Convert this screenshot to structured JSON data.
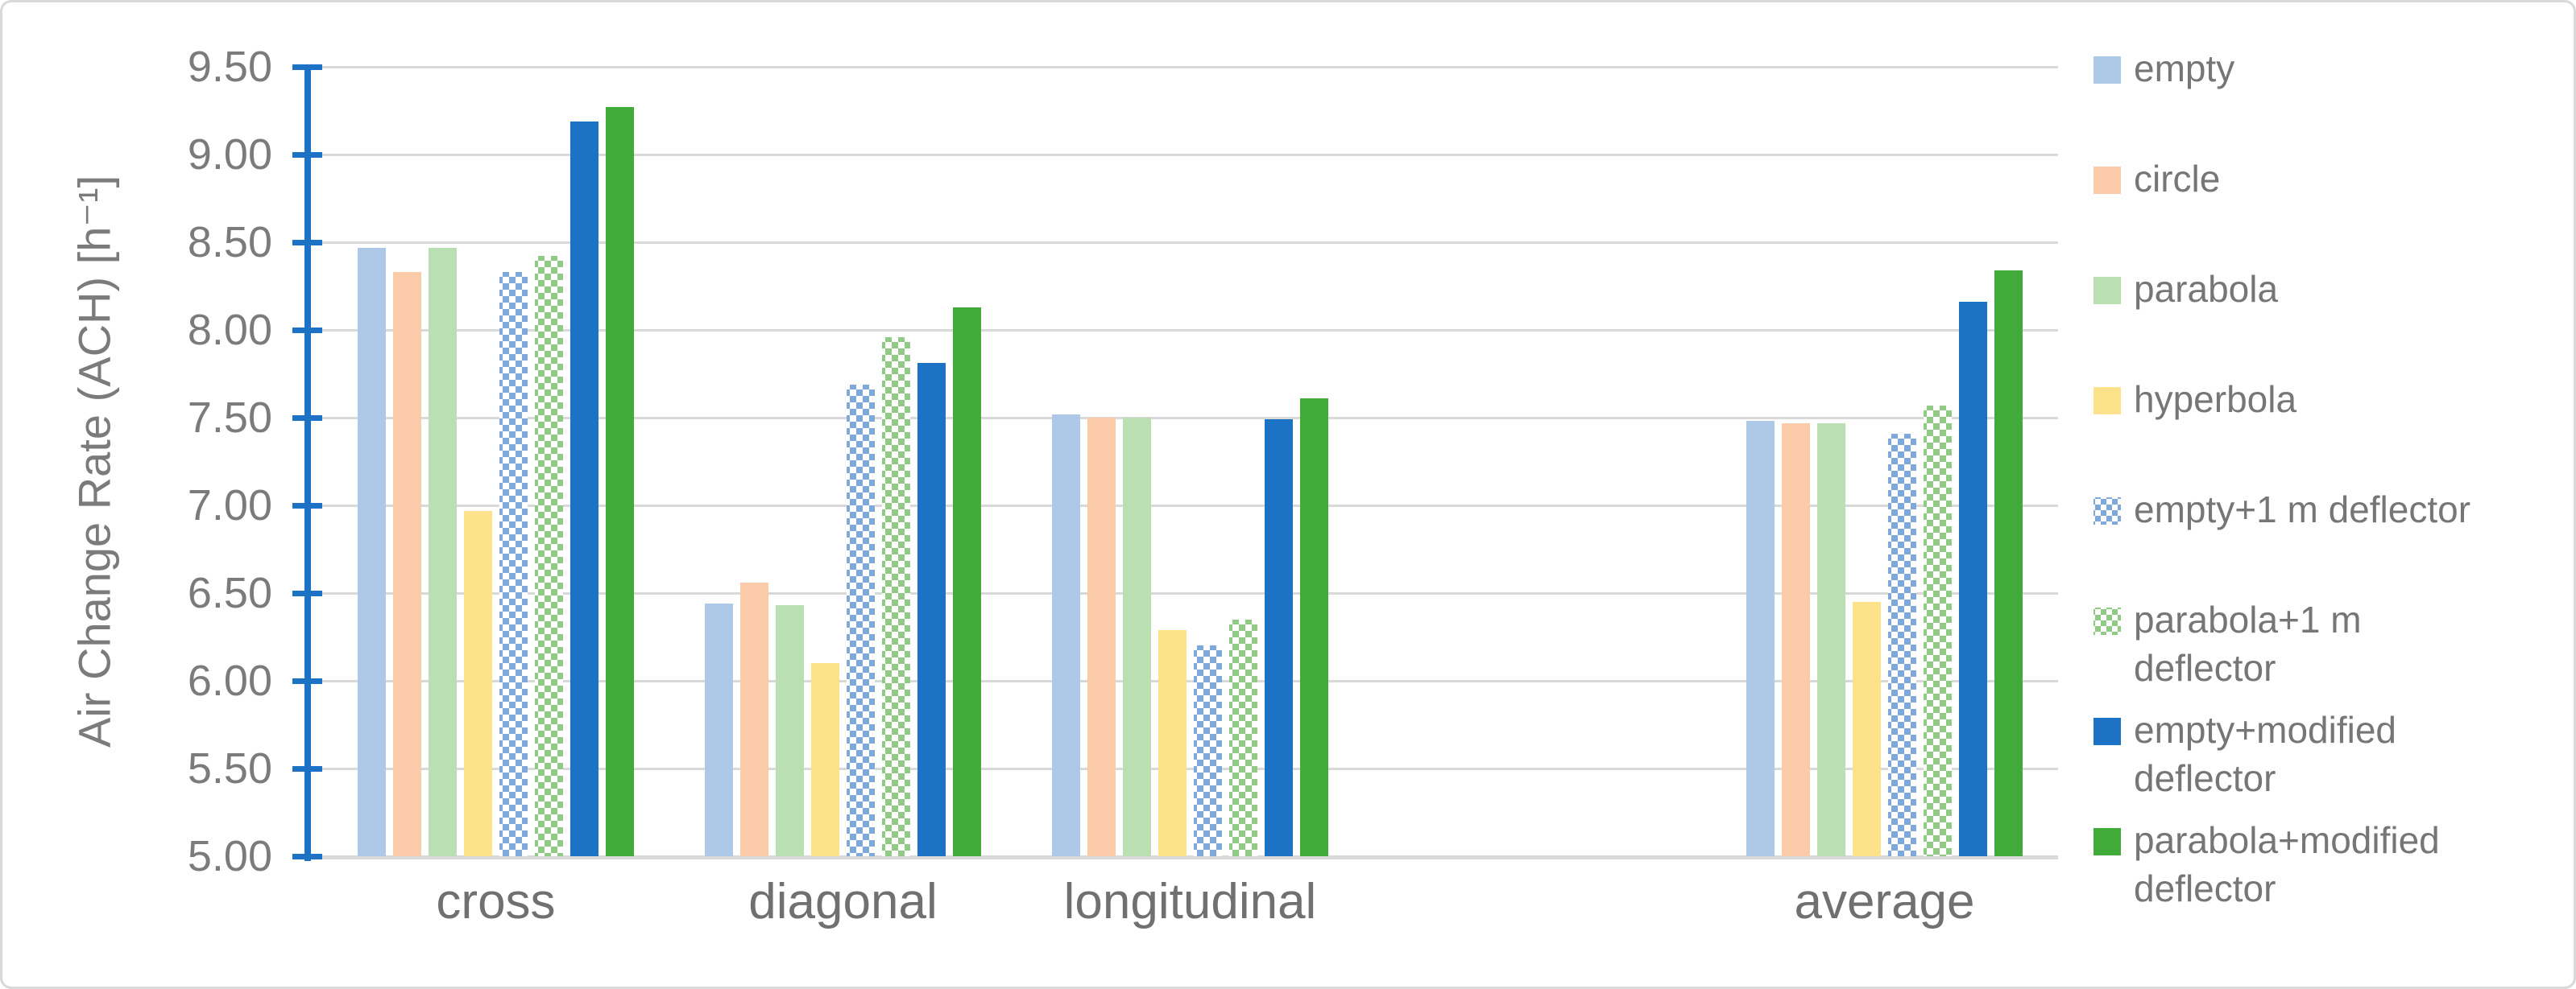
{
  "figure": {
    "background": "#FFFFFF",
    "border_color": "#D9D9D9"
  },
  "y_axis": {
    "title": "Air Change Rate (ACH) [h⁻¹]",
    "tick_labels": [
      "9.50",
      "9.00",
      "8.50",
      "8.00",
      "7.50",
      "7.00",
      "6.50",
      "6.00",
      "5.50",
      "5.00"
    ],
    "axis_color": "#1C72C5",
    "text_color": "#7B7B7B",
    "gridline_color": "#D9D9D9"
  },
  "x_axis": {
    "text_color": "#707070"
  },
  "chart_data": {
    "type": "bar",
    "title": "",
    "xlabel": "",
    "ylabel": "Air Change Rate (ACH) [h⁻¹]",
    "ylim": [
      5.0,
      9.5
    ],
    "ytick_step": 0.5,
    "grid": "horizontal",
    "legend_position": "right",
    "categories": [
      "cross",
      "diagonal",
      "longitudinal",
      "average"
    ],
    "gap_slot_before_last_category": true,
    "series": [
      {
        "name": "empty",
        "color": "#AEC9E8",
        "pattern": "solid",
        "values": [
          8.47,
          6.44,
          7.52,
          7.48
        ]
      },
      {
        "name": "circle",
        "color": "#FBCBA9",
        "pattern": "solid",
        "values": [
          8.33,
          6.56,
          7.5,
          7.47
        ]
      },
      {
        "name": "parabola",
        "color": "#BADFB3",
        "pattern": "solid",
        "values": [
          8.47,
          6.43,
          7.5,
          7.47
        ]
      },
      {
        "name": "hyperbola",
        "color": "#FBE28B",
        "pattern": "solid",
        "values": [
          6.97,
          6.1,
          6.29,
          6.45
        ]
      },
      {
        "name": "empty+1 m deflector",
        "color": "#7FA8DB",
        "pattern": "dots",
        "values": [
          8.33,
          7.69,
          6.2,
          7.41
        ]
      },
      {
        "name": "parabola+1 m deflector",
        "color": "#8FCB84",
        "pattern": "dots",
        "values": [
          8.42,
          7.96,
          6.35,
          7.57
        ]
      },
      {
        "name": "empty+modified deflector",
        "color": "#1C72C5",
        "pattern": "solid",
        "values": [
          9.19,
          7.81,
          7.49,
          8.16
        ]
      },
      {
        "name": "parabola+modified deflector",
        "color": "#41AB39",
        "pattern": "solid",
        "values": [
          9.27,
          8.13,
          7.61,
          8.34
        ]
      }
    ]
  }
}
